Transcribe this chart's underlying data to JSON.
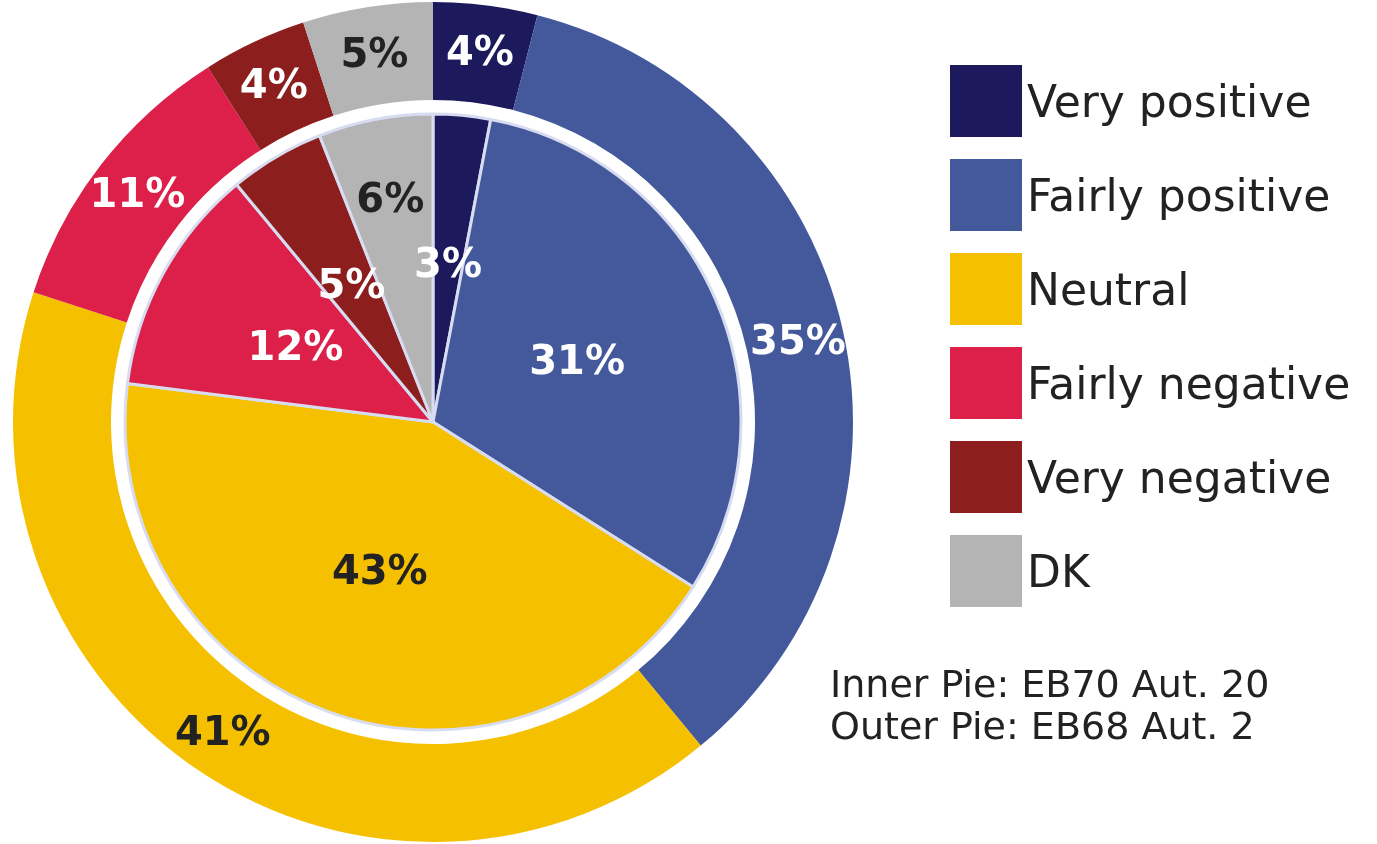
{
  "chart_data": {
    "type": "pie",
    "categories": [
      "Very positive",
      "Fairly positive",
      "Neutral",
      "Fairly negative",
      "Very negative",
      "DK"
    ],
    "colors": [
      "#1c1a5c",
      "#44599c",
      "#f5c000",
      "#dc2049",
      "#8c1e1e",
      "#b4b4b4"
    ],
    "series": [
      {
        "type": "donut",
        "values": [
          4,
          35,
          41,
          11,
          4,
          5
        ],
        "value_labels": [
          "4%",
          "35%",
          "41%",
          "11%",
          "4%",
          "5%"
        ]
      },
      {
        "values": [
          3,
          31,
          43,
          12,
          5,
          6
        ],
        "value_labels": [
          "3%",
          "31%",
          "43%",
          "12%",
          "5%",
          "6%"
        ]
      }
    ],
    "legend": "right",
    "annotations": [
      "Inner Pie: EB70 Aut. 20",
      "Outer Pie: EB68 Aut. 2"
    ]
  }
}
